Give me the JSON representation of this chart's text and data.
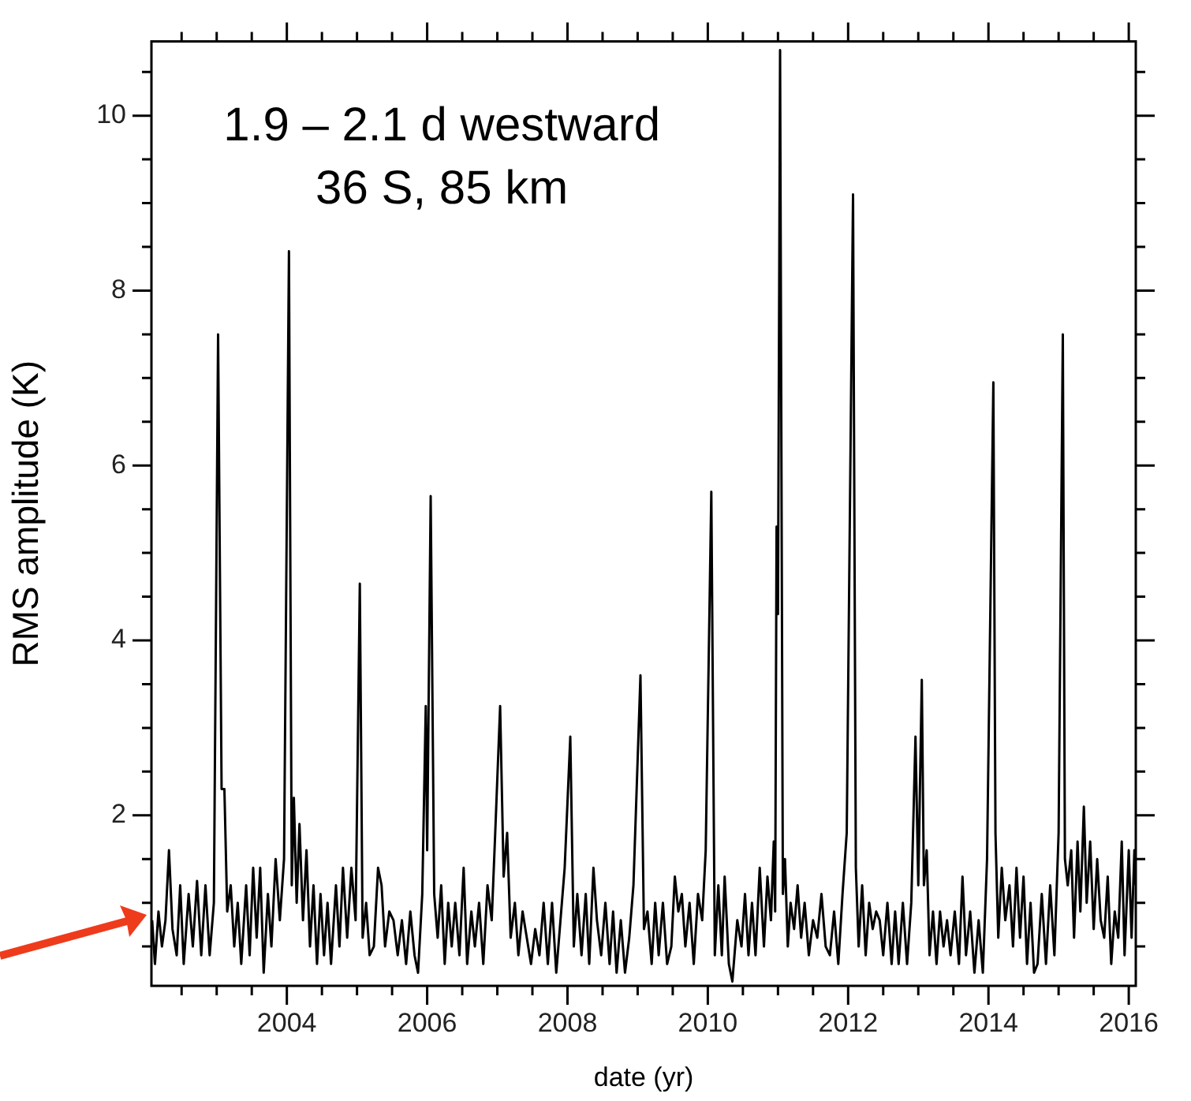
{
  "chart_data": {
    "type": "line",
    "xlabel": "date (yr)",
    "ylabel": "RMS amplitude (K)",
    "annotations": [
      "1.9 – 2.1 d westward",
      "36 S, 85 km"
    ],
    "xlim": [
      2002.07,
      2016.1
    ],
    "ylim": [
      0.05,
      10.85
    ],
    "xticks": [
      {
        "value": 2002.5,
        "label": null
      },
      {
        "value": 2003,
        "label": null
      },
      {
        "value": 2003.5,
        "label": null
      },
      2004,
      {
        "value": 2004.5,
        "label": null
      },
      {
        "value": 2005,
        "label": null
      },
      {
        "value": 2005.5,
        "label": null
      },
      2006,
      {
        "value": 2006.5,
        "label": null
      },
      {
        "value": 2007,
        "label": null
      },
      {
        "value": 2007.5,
        "label": null
      },
      2008,
      {
        "value": 2008.5,
        "label": null
      },
      {
        "value": 2009,
        "label": null
      },
      {
        "value": 2009.5,
        "label": null
      },
      2010,
      {
        "value": 2010.5,
        "label": null
      },
      {
        "value": 2011,
        "label": null
      },
      {
        "value": 2011.5,
        "label": null
      },
      2012,
      {
        "value": 2012.5,
        "label": null
      },
      {
        "value": 2013,
        "label": null
      },
      {
        "value": 2013.5,
        "label": null
      },
      2014,
      {
        "value": 2014.5,
        "label": null
      },
      {
        "value": 2015,
        "label": null
      },
      {
        "value": 2015.5,
        "label": null
      },
      2016
    ],
    "yticks": [
      {
        "value": 0.5,
        "label": null
      },
      {
        "value": 1,
        "label": null
      },
      {
        "value": 1.5,
        "label": null
      },
      2,
      {
        "value": 2.5,
        "label": null
      },
      {
        "value": 3,
        "label": null
      },
      {
        "value": 3.5,
        "label": null
      },
      4,
      {
        "value": 4.5,
        "label": null
      },
      {
        "value": 5,
        "label": null
      },
      {
        "value": 5.5,
        "label": null
      },
      6,
      {
        "value": 6.5,
        "label": null
      },
      {
        "value": 7,
        "label": null
      },
      {
        "value": 7.5,
        "label": null
      },
      8,
      {
        "value": 8.5,
        "label": null
      },
      {
        "value": 9,
        "label": null
      },
      {
        "value": 9.5,
        "label": null
      },
      10,
      {
        "value": 10.5,
        "label": null
      }
    ],
    "series": [
      {
        "color": "#000000",
        "x": [
          2002.08,
          2002.12,
          2002.17,
          2002.22,
          2002.27,
          2002.32,
          2002.37,
          2002.43,
          2002.48,
          2002.53,
          2002.6,
          2002.66,
          2002.72,
          2002.78,
          2002.84,
          2002.9,
          2002.96,
          2003.02,
          2003.07,
          2003.11,
          2003.15,
          2003.2,
          2003.25,
          2003.3,
          2003.35,
          2003.42,
          2003.47,
          2003.52,
          2003.57,
          2003.62,
          2003.67,
          2003.73,
          2003.78,
          2003.84,
          2003.9,
          2003.96,
          2004.03,
          2004.07,
          2004.1,
          2004.14,
          2004.18,
          2004.23,
          2004.28,
          2004.33,
          2004.38,
          2004.43,
          2004.48,
          2004.53,
          2004.58,
          2004.63,
          2004.7,
          2004.75,
          2004.8,
          2004.86,
          2004.92,
          2004.98,
          2005.04,
          2005.08,
          2005.13,
          2005.18,
          2005.24,
          2005.3,
          2005.35,
          2005.4,
          2005.46,
          2005.52,
          2005.58,
          2005.64,
          2005.7,
          2005.76,
          2005.82,
          2005.87,
          2005.93,
          2005.98,
          2006.0,
          2006.05,
          2006.1,
          2006.15,
          2006.2,
          2006.25,
          2006.3,
          2006.35,
          2006.4,
          2006.46,
          2006.52,
          2006.57,
          2006.63,
          2006.68,
          2006.74,
          2006.8,
          2006.86,
          2006.92,
          2006.97,
          2007.04,
          2007.09,
          2007.14,
          2007.19,
          2007.25,
          2007.3,
          2007.36,
          2007.42,
          2007.48,
          2007.54,
          2007.6,
          2007.66,
          2007.72,
          2007.78,
          2007.84,
          2007.9,
          2007.96,
          2008.04,
          2008.09,
          2008.14,
          2008.2,
          2008.26,
          2008.31,
          2008.37,
          2008.42,
          2008.48,
          2008.54,
          2008.6,
          2008.65,
          2008.7,
          2008.76,
          2008.82,
          2008.88,
          2008.94,
          2009.04,
          2009.09,
          2009.14,
          2009.2,
          2009.25,
          2009.3,
          2009.36,
          2009.42,
          2009.48,
          2009.53,
          2009.58,
          2009.63,
          2009.68,
          2009.74,
          2009.8,
          2009.86,
          2009.92,
          2009.97,
          2010.05,
          2010.1,
          2010.15,
          2010.2,
          2010.24,
          2010.3,
          2010.35,
          2010.42,
          2010.48,
          2010.53,
          2010.58,
          2010.63,
          2010.68,
          2010.74,
          2010.8,
          2010.85,
          2010.9,
          2010.94,
          2010.96,
          2010.98,
          2011.0,
          2011.03,
          2011.07,
          2011.1,
          2011.14,
          2011.18,
          2011.23,
          2011.28,
          2011.33,
          2011.38,
          2011.44,
          2011.5,
          2011.56,
          2011.62,
          2011.68,
          2011.74,
          2011.8,
          2011.86,
          2011.92,
          2011.98,
          2012.07,
          2012.11,
          2012.15,
          2012.2,
          2012.25,
          2012.3,
          2012.35,
          2012.4,
          2012.45,
          2012.5,
          2012.56,
          2012.62,
          2012.67,
          2012.72,
          2012.78,
          2012.84,
          2012.9,
          2012.96,
          2013.0,
          2013.05,
          2013.08,
          2013.12,
          2013.16,
          2013.21,
          2013.26,
          2013.31,
          2013.36,
          2013.41,
          2013.46,
          2013.52,
          2013.58,
          2013.63,
          2013.68,
          2013.74,
          2013.8,
          2013.86,
          2013.92,
          2013.98,
          2014.07,
          2014.1,
          2014.14,
          2014.19,
          2014.24,
          2014.3,
          2014.35,
          2014.4,
          2014.45,
          2014.5,
          2014.55,
          2014.6,
          2014.65,
          2014.7,
          2014.76,
          2014.82,
          2014.88,
          2014.94,
          2015.0,
          2015.06,
          2015.09,
          2015.13,
          2015.18,
          2015.22,
          2015.27,
          2015.31,
          2015.36,
          2015.4,
          2015.45,
          2015.5,
          2015.55,
          2015.6,
          2015.65,
          2015.7,
          2015.75,
          2015.8,
          2015.85,
          2015.9,
          2015.94,
          2016.0,
          2016.04,
          2016.08,
          2016.1
        ],
        "values": [
          0.8,
          0.3,
          0.9,
          0.5,
          0.8,
          1.6,
          0.7,
          0.4,
          1.2,
          0.3,
          1.1,
          0.5,
          1.25,
          0.4,
          1.2,
          0.4,
          1.0,
          7.5,
          2.3,
          2.3,
          0.9,
          1.2,
          0.5,
          1.0,
          0.3,
          1.2,
          0.4,
          1.4,
          0.6,
          1.4,
          0.2,
          1.1,
          0.5,
          1.5,
          0.8,
          1.5,
          8.45,
          1.2,
          2.2,
          1.0,
          1.9,
          0.8,
          1.6,
          0.5,
          1.2,
          0.3,
          1.1,
          0.4,
          1.0,
          0.3,
          1.2,
          0.5,
          1.4,
          0.6,
          1.4,
          0.8,
          4.65,
          0.6,
          1.0,
          0.4,
          0.5,
          1.4,
          1.2,
          0.5,
          0.9,
          0.8,
          0.4,
          0.8,
          0.3,
          0.9,
          0.4,
          0.2,
          1.1,
          3.25,
          1.6,
          5.65,
          1.1,
          0.6,
          1.2,
          0.3,
          1.0,
          0.5,
          1.0,
          0.4,
          1.4,
          0.3,
          0.9,
          0.5,
          1.0,
          0.3,
          1.2,
          0.8,
          1.8,
          3.25,
          1.3,
          1.8,
          0.6,
          1.0,
          0.4,
          0.9,
          0.6,
          0.3,
          0.7,
          0.4,
          1.0,
          0.3,
          1.0,
          0.2,
          0.8,
          1.4,
          2.9,
          0.5,
          1.1,
          0.4,
          1.1,
          0.3,
          1.4,
          0.8,
          0.4,
          1.0,
          0.3,
          0.9,
          0.2,
          0.8,
          0.2,
          0.6,
          1.2,
          3.6,
          0.7,
          0.9,
          0.3,
          1.0,
          0.4,
          1.0,
          0.3,
          0.5,
          1.3,
          0.9,
          1.1,
          0.5,
          1.0,
          0.3,
          1.1,
          0.8,
          1.6,
          5.7,
          0.4,
          1.2,
          0.4,
          1.3,
          0.3,
          0.1,
          0.8,
          0.5,
          1.1,
          0.4,
          1.0,
          0.4,
          1.4,
          0.5,
          1.3,
          0.8,
          1.7,
          0.9,
          5.3,
          4.3,
          10.75,
          1.1,
          1.5,
          0.5,
          1.0,
          0.7,
          1.2,
          0.6,
          1.0,
          0.4,
          0.8,
          0.6,
          1.1,
          0.5,
          0.4,
          0.9,
          0.3,
          1.1,
          1.8,
          9.1,
          1.4,
          0.5,
          1.2,
          0.4,
          1.0,
          0.7,
          0.9,
          0.8,
          0.4,
          1.0,
          0.3,
          0.9,
          0.3,
          1.0,
          0.3,
          1.0,
          2.9,
          1.2,
          3.55,
          1.2,
          1.6,
          0.4,
          0.9,
          0.3,
          0.9,
          0.5,
          0.8,
          0.4,
          0.9,
          0.3,
          1.3,
          0.4,
          0.9,
          0.2,
          0.8,
          0.2,
          1.5,
          6.95,
          1.8,
          0.6,
          1.4,
          0.8,
          1.2,
          0.5,
          1.4,
          0.6,
          1.3,
          0.3,
          1.0,
          0.2,
          0.3,
          1.1,
          0.3,
          1.2,
          0.4,
          1.8,
          7.5,
          1.5,
          1.2,
          1.6,
          0.6,
          1.7,
          0.9,
          2.1,
          1.0,
          1.7,
          0.7,
          1.5,
          0.8,
          0.6,
          1.3,
          0.3,
          0.9,
          0.6,
          1.7,
          0.4,
          1.6,
          0.6,
          1.6,
          1.2
        ]
      }
    ]
  }
}
